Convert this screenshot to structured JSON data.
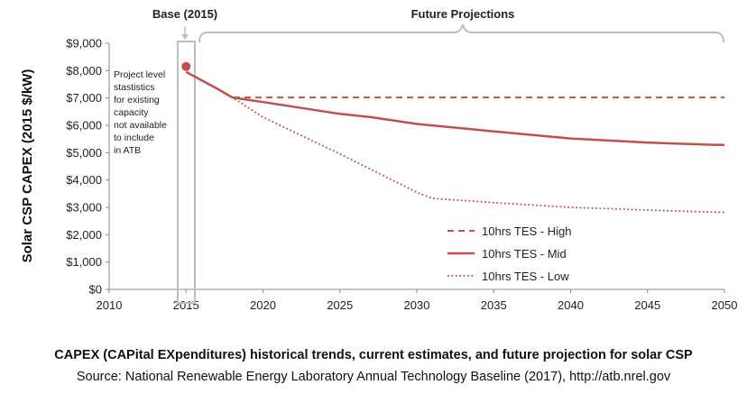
{
  "chart_data": {
    "type": "line",
    "ylabel": "Solar CSP CAPEX (2015 $/kW)",
    "xlim": [
      2010,
      2050
    ],
    "ylim": [
      0,
      9000
    ],
    "xticks": [
      "2010",
      "2015",
      "2020",
      "2025",
      "2030",
      "2035",
      "2040",
      "2045",
      "2050"
    ],
    "yticks": [
      "$0",
      "$1,000",
      "$2,000",
      "$3,000",
      "$4,000",
      "$5,000",
      "$6,000",
      "$7,000",
      "$8,000",
      "$9,000"
    ],
    "grid": false,
    "legend_position": "bottom-center",
    "base": {
      "label": "Base (2015)",
      "year": 2015,
      "value": 8150
    },
    "future_label": "Future Projections",
    "note": [
      "Project level",
      "stastistics",
      "for existing",
      "capacity",
      "not available",
      "to include",
      "in ATB"
    ],
    "series": [
      {
        "name": "10hrs TES - High",
        "style": "dashed",
        "color": "#c0504d",
        "x": [
          2015,
          2016,
          2017,
          2018,
          2050
        ],
        "y": [
          7950,
          7650,
          7350,
          7020,
          7020
        ]
      },
      {
        "name": "10hrs TES - Mid",
        "style": "solid",
        "color": "#c0504d",
        "x": [
          2015,
          2016,
          2017,
          2018,
          2020,
          2025,
          2027,
          2030,
          2035,
          2040,
          2045,
          2049,
          2050
        ],
        "y": [
          7950,
          7650,
          7350,
          7020,
          6850,
          6420,
          6300,
          6050,
          5780,
          5520,
          5370,
          5290,
          5280
        ]
      },
      {
        "name": "10hrs TES - Low",
        "style": "dotted",
        "color": "#c0504d",
        "x": [
          2015,
          2016,
          2017,
          2018,
          2020,
          2025,
          2030,
          2031,
          2035,
          2040,
          2045,
          2049,
          2050
        ],
        "y": [
          7950,
          7650,
          7350,
          7020,
          6300,
          4950,
          3550,
          3330,
          3170,
          3000,
          2900,
          2830,
          2820
        ]
      }
    ]
  },
  "caption": {
    "title": "CAPEX (CAPital EXpenditures) historical trends, current estimates, and future projection for solar CSP",
    "source": "Source:  National Renewable Energy Laboratory Annual Technology Baseline (2017), http://atb.nrel.gov"
  }
}
